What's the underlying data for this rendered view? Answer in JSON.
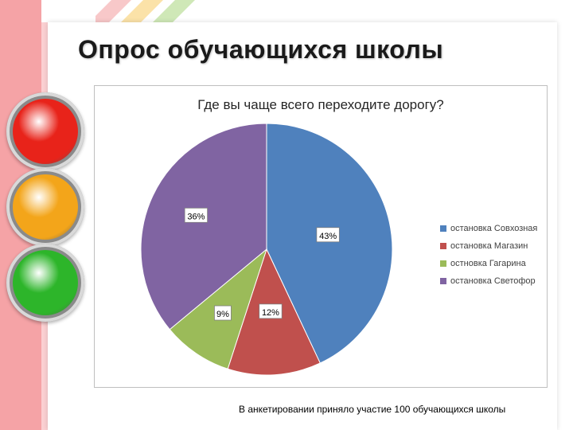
{
  "page": {
    "title": "Опрос обучающихся школы",
    "footnote": "В анкетировании приняло участие 100 обучающихся школы"
  },
  "decoration": {
    "traffic_light_colors": [
      "#e8231a",
      "#f3a51a",
      "#2db52a"
    ]
  },
  "chart_data": {
    "type": "pie",
    "title": "Где вы чаще всего переходите дорогу?",
    "categories": [
      "остановка Совхозная",
      "остановка Магазин",
      "остновка Гагарина",
      "остановка Светофор"
    ],
    "values": [
      43,
      12,
      9,
      36
    ],
    "data_labels": [
      "43%",
      "12%",
      "9%",
      "36%"
    ],
    "colors": [
      "#4f81bd",
      "#c0504d",
      "#9bbb59",
      "#8064a2"
    ],
    "legend_position": "right"
  }
}
